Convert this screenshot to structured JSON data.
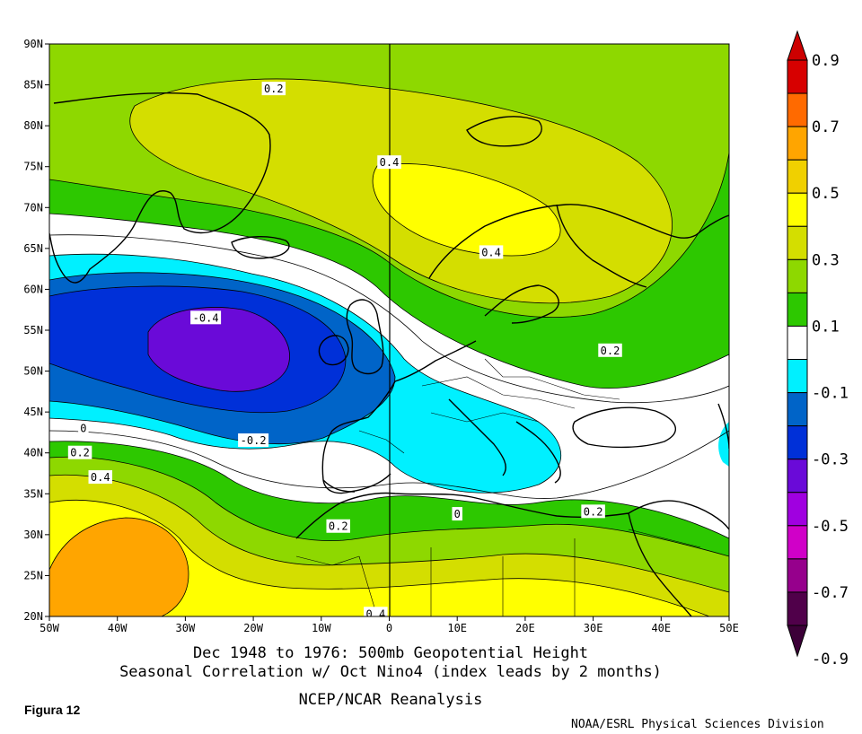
{
  "map": {
    "lat_ticks": [
      "90N",
      "85N",
      "80N",
      "75N",
      "70N",
      "65N",
      "60N",
      "55N",
      "50N",
      "45N",
      "40N",
      "35N",
      "30N",
      "25N",
      "20N"
    ],
    "lon_ticks": [
      "50W",
      "40W",
      "30W",
      "20W",
      "10W",
      "0",
      "10E",
      "20E",
      "30E",
      "40E",
      "50E"
    ],
    "extent": {
      "lon_min": -50,
      "lon_max": 50,
      "lat_min": 20,
      "lat_max": 90
    },
    "contour_labels": [
      {
        "text": "0.2",
        "lon": -17,
        "lat": 84.5
      },
      {
        "text": "0.4",
        "lon": 0,
        "lat": 75.5
      },
      {
        "text": "0.4",
        "lon": 15,
        "lat": 64.5
      },
      {
        "text": "0.2",
        "lon": 32.5,
        "lat": 52.5
      },
      {
        "text": "-0.4",
        "lon": -27,
        "lat": 56.5
      },
      {
        "text": "-0.2",
        "lon": -20,
        "lat": 41.5
      },
      {
        "text": "0",
        "lon": -45,
        "lat": 43
      },
      {
        "text": "0.2",
        "lon": -45.5,
        "lat": 40
      },
      {
        "text": "0.4",
        "lon": -42.5,
        "lat": 37
      },
      {
        "text": "0.2",
        "lon": -7.5,
        "lat": 31
      },
      {
        "text": "0",
        "lon": 10,
        "lat": 32.5
      },
      {
        "text": "0.2",
        "lon": 30,
        "lat": 32.8
      },
      {
        "text": "0.4",
        "lon": -2,
        "lat": 20.3
      }
    ]
  },
  "legend": {
    "labels": [
      "0.9",
      "0.7",
      "0.5",
      "0.3",
      "0.1",
      "-0.1",
      "-0.3",
      "-0.5",
      "-0.7",
      "-0.9"
    ],
    "colors": [
      "#d70000",
      "#ff6a00",
      "#ffa500",
      "#f0d000",
      "#ffff00",
      "#d4de00",
      "#8ed800",
      "#2dc800",
      "#ffffff",
      "#00f0ff",
      "#0064c8",
      "#0030d8",
      "#6a0ad8",
      "#a000e0",
      "#d000c8",
      "#96008c",
      "#50004a"
    ],
    "top_arrow_color": "#cd0000",
    "bottom_arrow_color": "#3c0038"
  },
  "palette": {
    "c09": "#d70000",
    "c07": "#ff6a00",
    "c06": "#ffa500",
    "c05": "#ffff00",
    "c04": "#d4de00",
    "c03": "#8ed800",
    "c02": "#2dc800",
    "c00": "#ffffff",
    "cn1": "#00f0ff",
    "cn2": "#0064c8",
    "cn3": "#0030d8",
    "cn4": "#6a0ad8"
  },
  "caption": {
    "line1": "Dec 1948 to 1976: 500mb Geopotential Height",
    "line2": "Seasonal Correlation w/ Oct Nino4 (index leads by 2 months)",
    "line3": "NCEP/NCAR Reanalysis"
  },
  "figure_label": "Figura 12",
  "credit": "NOAA/ESRL Physical Sciences Division"
}
